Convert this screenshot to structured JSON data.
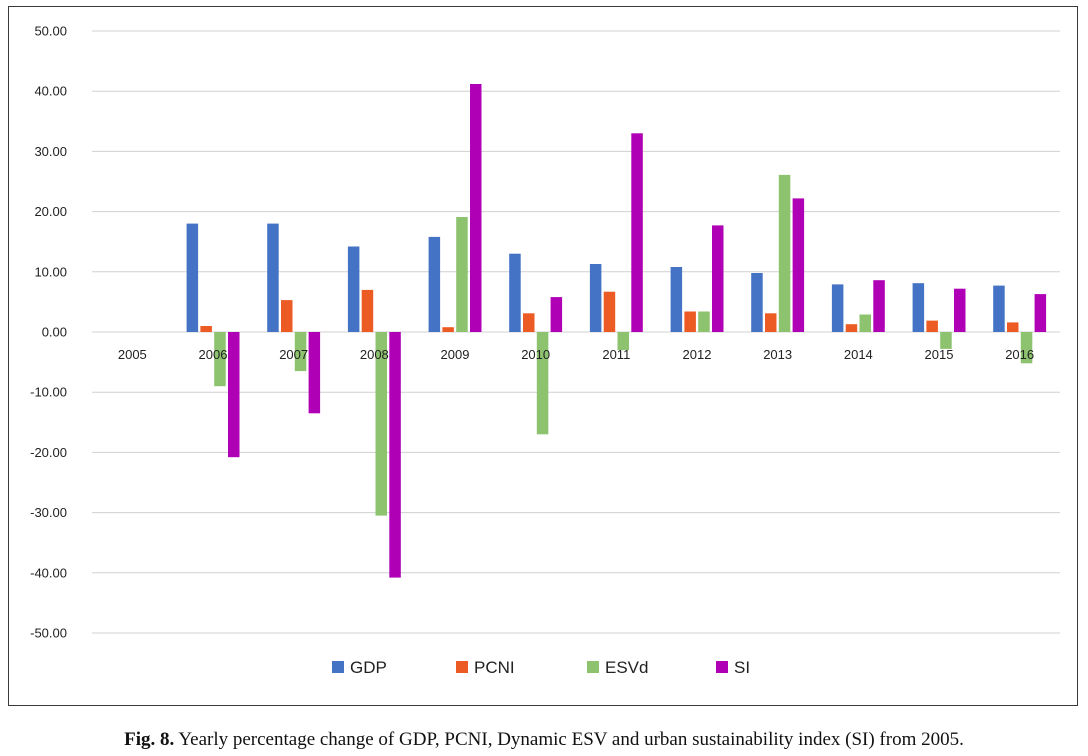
{
  "caption": {
    "label": "Fig. 8.",
    "text": "Yearly percentage change of GDP, PCNI, Dynamic ESV and urban sustainability index (SI) from 2005."
  },
  "chart_data": {
    "type": "bar",
    "categories": [
      "2005",
      "2006",
      "2007",
      "2008",
      "2009",
      "2010",
      "2011",
      "2012",
      "2013",
      "2014",
      "2015",
      "2016"
    ],
    "series": [
      {
        "name": "GDP",
        "color": "#4472C4",
        "values": [
          0,
          18.0,
          18.0,
          14.2,
          15.8,
          13.0,
          11.3,
          10.8,
          9.8,
          7.9,
          8.1,
          7.7
        ]
      },
      {
        "name": "PCNI",
        "color": "#ED5B24",
        "values": [
          0,
          1.0,
          5.3,
          7.0,
          0.8,
          3.1,
          6.7,
          3.4,
          3.1,
          1.3,
          1.9,
          1.6
        ]
      },
      {
        "name": "ESVd",
        "color": "#8DC26F",
        "values": [
          0,
          -9.0,
          -6.5,
          -30.5,
          19.1,
          -17.0,
          -3.0,
          3.4,
          26.1,
          2.9,
          -2.8,
          -5.2
        ]
      },
      {
        "name": "SI",
        "color": "#B000B5",
        "values": [
          0,
          -20.8,
          -13.5,
          -40.8,
          41.2,
          5.8,
          33.0,
          17.7,
          22.2,
          8.6,
          7.2,
          6.3
        ]
      }
    ],
    "ylim": [
      -50,
      50
    ],
    "yticks": [
      "50.00",
      "40.00",
      "30.00",
      "20.00",
      "10.00",
      "0.00",
      "-10.00",
      "-20.00",
      "-30.00",
      "-40.00",
      "-50.00"
    ],
    "ytick_values": [
      50,
      40,
      30,
      20,
      10,
      0,
      -10,
      -20,
      -30,
      -40,
      -50
    ],
    "grid": true,
    "legend_position": "bottom"
  }
}
